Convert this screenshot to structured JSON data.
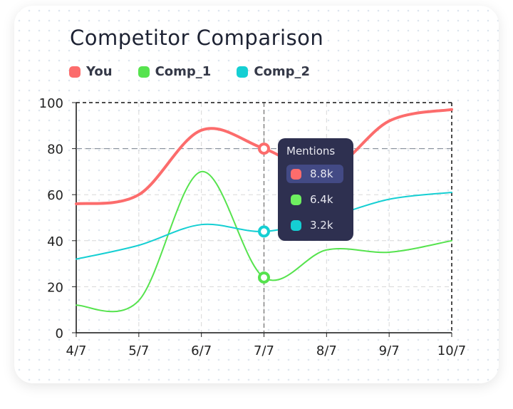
{
  "chart_data": {
    "type": "line",
    "title": "Competitor Comparison",
    "categories": [
      "4/7",
      "5/7",
      "6/7",
      "7/7",
      "8/7",
      "9/7",
      "10/7"
    ],
    "ylim": [
      0,
      100
    ],
    "yticks": [
      "0",
      "20",
      "40",
      "60",
      "80",
      "100"
    ],
    "grid": true,
    "legend_position": "top-left",
    "series": [
      {
        "name": "You",
        "color": "#fc6c6c",
        "values": [
          56,
          60,
          88,
          80,
          70,
          92,
          97
        ]
      },
      {
        "name": "Comp_1",
        "color": "#56e34e",
        "values": [
          12,
          14,
          70,
          24,
          36,
          35,
          40
        ]
      },
      {
        "name": "Comp_2",
        "color": "#15cfd3",
        "values": [
          32,
          38,
          47,
          44,
          50,
          58,
          61
        ]
      }
    ],
    "crosshair": {
      "category": "7/7",
      "value": 80
    }
  },
  "tooltip": {
    "title": "Mentions",
    "rows": [
      {
        "label": "8.8k",
        "color": "#fc6c6c"
      },
      {
        "label": "6.4k",
        "color": "#6ef060"
      },
      {
        "label": "3.2k",
        "color": "#15cfd3"
      }
    ]
  }
}
